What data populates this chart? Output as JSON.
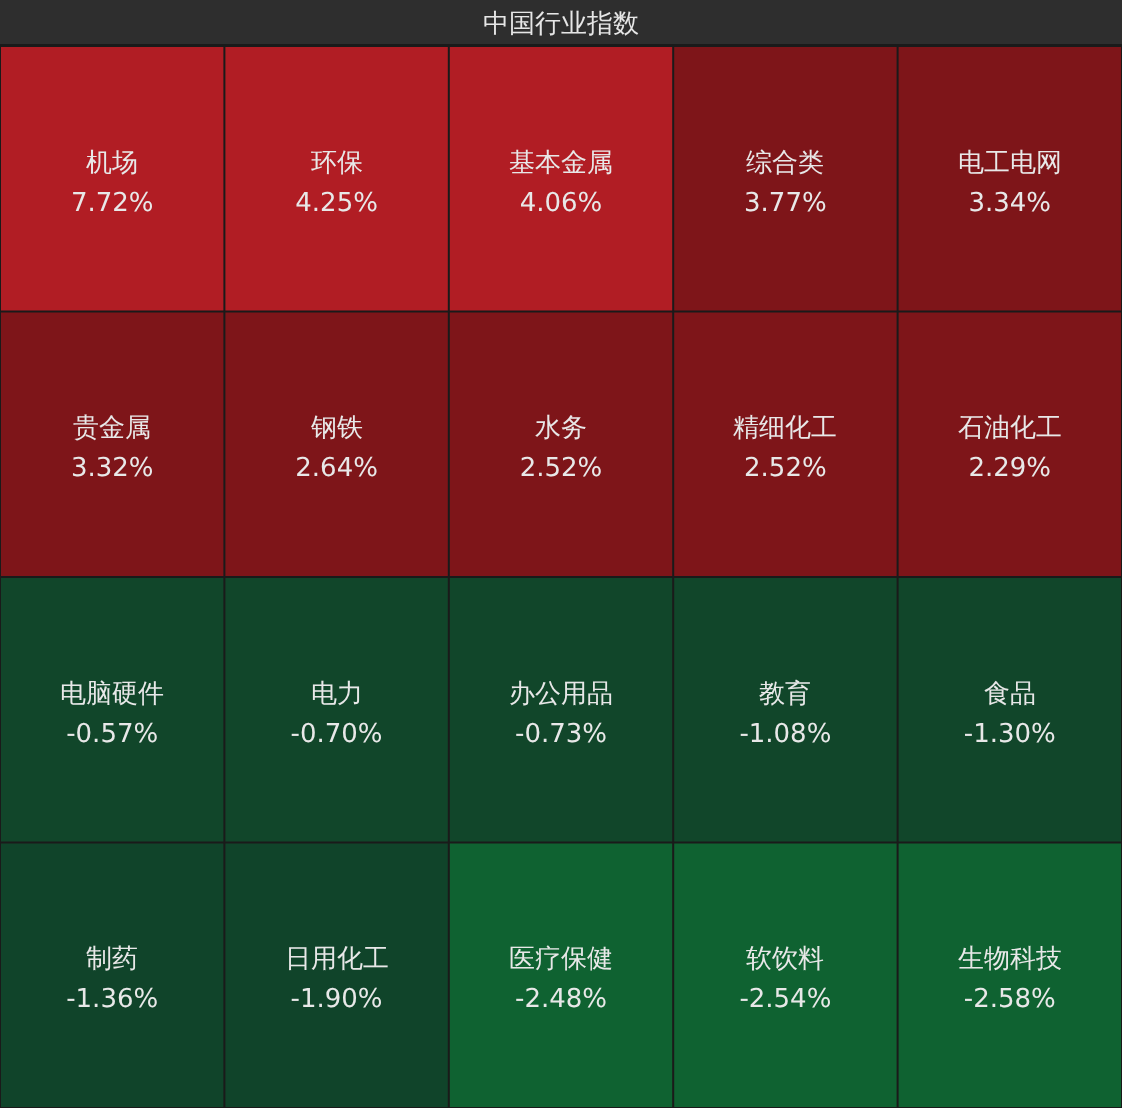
{
  "chart_data": {
    "type": "other",
    "title": "中国行业指数",
    "categories": [
      "机场",
      "环保",
      "基本金属",
      "综合类",
      "电工电网",
      "贵金属",
      "钢铁",
      "水务",
      "精细化工",
      "石油化工",
      "电脑硬件",
      "电力",
      "办公用品",
      "教育",
      "食品",
      "制药",
      "日用化工",
      "医疗保健",
      "软饮料",
      "生物科技"
    ],
    "values": [
      7.72,
      4.25,
      4.06,
      3.77,
      3.34,
      3.32,
      2.64,
      2.52,
      2.52,
      2.29,
      -0.57,
      -0.7,
      -0.73,
      -1.08,
      -1.3,
      -1.36,
      -1.9,
      -2.48,
      -2.54,
      -2.58
    ],
    "colors": [
      "#b11d24",
      "#b11d24",
      "#b11d24",
      "#7e1519",
      "#7e1519",
      "#7e1519",
      "#7e1519",
      "#7e1519",
      "#7e1519",
      "#7e1519",
      "#11462a",
      "#11462a",
      "#11462a",
      "#11462a",
      "#11462a",
      "#10442a",
      "#10442a",
      "#0f6231",
      "#0f6231",
      "#0f6231"
    ],
    "value_labels": [
      "7.72%",
      "4.25%",
      "4.06%",
      "3.77%",
      "3.34%",
      "3.32%",
      "2.64%",
      "2.52%",
      "2.52%",
      "2.29%",
      "-0.57%",
      "-0.70%",
      "-0.73%",
      "-1.08%",
      "-1.30%",
      "-1.36%",
      "-1.90%",
      "-2.48%",
      "-2.54%",
      "-2.58%"
    ]
  }
}
